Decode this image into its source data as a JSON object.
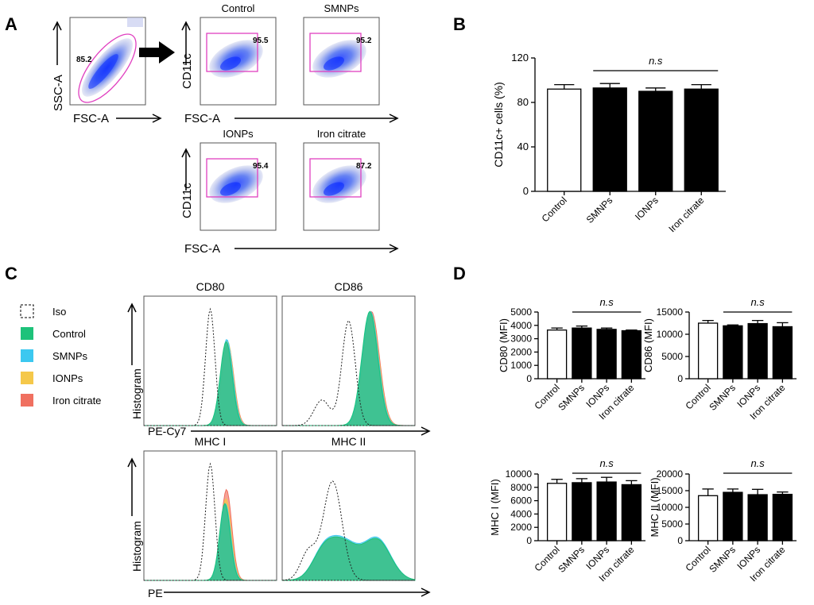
{
  "panel_letters": [
    "A",
    "B",
    "C",
    "D"
  ],
  "flow": {
    "gate_ssc_fsc": {
      "value": "85.2",
      "xlabel": "FSC-A",
      "ylabel": "SSC-A"
    },
    "cd11c_gates": [
      {
        "title": "Control",
        "value": "95.5"
      },
      {
        "title": "SMNPs",
        "value": "95.2"
      },
      {
        "title": "IONPs",
        "value": "95.4"
      },
      {
        "title": "Iron citrate",
        "value": "87.2"
      }
    ],
    "cd11c_ylabel": "CD11c",
    "cd11c_xlabel": "FSC-A"
  },
  "histograms": {
    "legend": [
      {
        "label": "Iso",
        "color": "#ffffff",
        "dashed": true
      },
      {
        "label": "Control",
        "color": "#1ec27a"
      },
      {
        "label": "SMNPs",
        "color": "#3cc8f0"
      },
      {
        "label": "IONPs",
        "color": "#f5c84a"
      },
      {
        "label": "Iron citrate",
        "color": "#f07060"
      }
    ],
    "titles": [
      "CD80",
      "CD86",
      "MHC I",
      "MHC II"
    ],
    "ylabel": "Histogram",
    "xlabel_top": "PE-Cy7",
    "xlabel_bottom": "PE"
  },
  "chart_data": [
    {
      "type": "bar",
      "panel": "B",
      "categories": [
        "Control",
        "SMNPs",
        "IONPs",
        "Iron citrate"
      ],
      "values": [
        92,
        93,
        90,
        92
      ],
      "errors": [
        4,
        4,
        3,
        4
      ],
      "fills": [
        "#ffffff",
        "#000000",
        "#000000",
        "#000000"
      ],
      "ylabel": "CD11c+ cells (%)",
      "ylim": [
        0,
        120
      ],
      "yticks": [
        "0",
        "40",
        "80",
        "120"
      ],
      "annotation": "n.s"
    },
    {
      "type": "bar",
      "panel": "D",
      "categories": [
        "Control",
        "SMNPs",
        "IONPs",
        "Iron citrate"
      ],
      "values": [
        3650,
        3800,
        3700,
        3600
      ],
      "errors": [
        150,
        150,
        100,
        50
      ],
      "ylabel": "CD80 (MFI)",
      "ylim": [
        0,
        5000
      ],
      "yticks": [
        "0",
        "1000",
        "2000",
        "3000",
        "4000",
        "5000"
      ],
      "annotation": "n.s"
    },
    {
      "type": "bar",
      "panel": "D",
      "categories": [
        "Control",
        "SMNPs",
        "IONPs",
        "Iron citrate"
      ],
      "values": [
        12500,
        11900,
        12400,
        11700
      ],
      "errors": [
        600,
        200,
        700,
        900
      ],
      "ylabel": "CD86 (MFI)",
      "ylim": [
        0,
        15000
      ],
      "yticks": [
        "0",
        "5000",
        "10000",
        "15000"
      ],
      "annotation": "n.s"
    },
    {
      "type": "bar",
      "panel": "D",
      "categories": [
        "Control",
        "SMNPs",
        "IONPs",
        "Iron citrate"
      ],
      "values": [
        8600,
        8700,
        8800,
        8400
      ],
      "errors": [
        600,
        600,
        700,
        600
      ],
      "ylabel": "MHC I (MFI)",
      "ylim": [
        0,
        10000
      ],
      "yticks": [
        "0",
        "2000",
        "4000",
        "6000",
        "8000",
        "10000"
      ],
      "annotation": "n.s"
    },
    {
      "type": "bar",
      "panel": "D",
      "categories": [
        "Control",
        "SMNPs",
        "IONPs",
        "Iron citrate"
      ],
      "values": [
        13500,
        14500,
        13800,
        13900
      ],
      "errors": [
        2000,
        1000,
        1600,
        700
      ],
      "ylabel": "MHC II (MFI)",
      "ylim": [
        0,
        20000
      ],
      "yticks": [
        "0",
        "5000",
        "10000",
        "15000",
        "20000"
      ],
      "annotation": "n.s"
    }
  ]
}
